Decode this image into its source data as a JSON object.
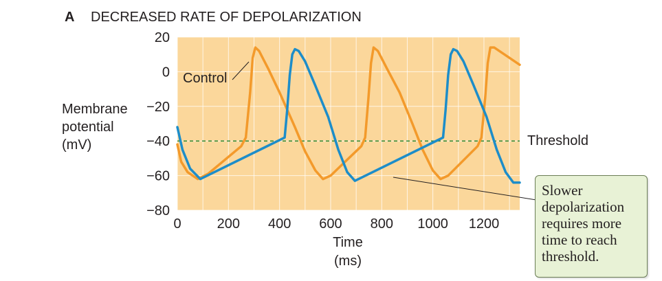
{
  "panel": {
    "letter": "A",
    "title": "DECREASED RATE OF DEPOLARIZATION"
  },
  "colors": {
    "plot_background": "#fbd79b",
    "grid": "#ffffff",
    "control": "#f39a2b",
    "slowed": "#1d8dc9",
    "threshold": "#2e8b3a",
    "callout_background": "#e8f2d6",
    "callout_border": "#6a7d55"
  },
  "annotations": {
    "control_label": "Control",
    "threshold_label": "Threshold",
    "callout_lines": [
      "Slower",
      "depolarization",
      "requires more",
      "time to reach",
      "threshold."
    ]
  },
  "chart_data": {
    "type": "line",
    "ylabel_lines": [
      "Membrane",
      "potential",
      "(mV)"
    ],
    "xlabel_lines": [
      "Time",
      "(ms)"
    ],
    "xlim": [
      0,
      1340
    ],
    "ylim": [
      -80,
      20
    ],
    "x_ticks": [
      0,
      200,
      400,
      600,
      800,
      1000,
      1200
    ],
    "y_ticks": [
      20,
      0,
      -20,
      -40,
      -60,
      -80
    ],
    "x_gridlines": [
      0,
      100,
      200,
      300,
      400,
      500,
      600,
      700,
      800,
      900,
      1000,
      1100,
      1200,
      1300
    ],
    "y_gridlines": [
      20,
      0,
      -20,
      -40,
      -60,
      -80
    ],
    "grid": true,
    "threshold": -40,
    "series": [
      {
        "key": "control",
        "name": "Control",
        "points": [
          [
            0,
            -42
          ],
          [
            15,
            -52
          ],
          [
            40,
            -58
          ],
          [
            80,
            -62
          ],
          [
            120,
            -59
          ],
          [
            250,
            -43
          ],
          [
            268,
            -38
          ],
          [
            285,
            -12
          ],
          [
            295,
            8
          ],
          [
            305,
            14
          ],
          [
            320,
            12
          ],
          [
            355,
            2
          ],
          [
            400,
            -12
          ],
          [
            460,
            -32
          ],
          [
            500,
            -46
          ],
          [
            540,
            -57
          ],
          [
            570,
            -62
          ],
          [
            600,
            -60
          ],
          [
            720,
            -43
          ],
          [
            735,
            -38
          ],
          [
            748,
            -15
          ],
          [
            758,
            5
          ],
          [
            768,
            14
          ],
          [
            785,
            12
          ],
          [
            820,
            2
          ],
          [
            870,
            -12
          ],
          [
            920,
            -30
          ],
          [
            960,
            -45
          ],
          [
            1000,
            -57
          ],
          [
            1030,
            -62
          ],
          [
            1060,
            -60
          ],
          [
            1175,
            -43
          ],
          [
            1190,
            -38
          ],
          [
            1205,
            -15
          ],
          [
            1215,
            5
          ],
          [
            1225,
            14
          ],
          [
            1240,
            14
          ],
          [
            1270,
            11
          ],
          [
            1300,
            8
          ],
          [
            1340,
            4
          ]
        ]
      },
      {
        "key": "slowed",
        "name": "",
        "points": [
          [
            0,
            -32
          ],
          [
            20,
            -45
          ],
          [
            50,
            -56
          ],
          [
            90,
            -62
          ],
          [
            420,
            -38
          ],
          [
            430,
            -22
          ],
          [
            440,
            -2
          ],
          [
            450,
            10
          ],
          [
            460,
            13
          ],
          [
            475,
            12
          ],
          [
            500,
            6
          ],
          [
            540,
            -8
          ],
          [
            590,
            -26
          ],
          [
            630,
            -45
          ],
          [
            665,
            -58
          ],
          [
            695,
            -63
          ],
          [
            1040,
            -38
          ],
          [
            1050,
            -22
          ],
          [
            1060,
            -2
          ],
          [
            1070,
            10
          ],
          [
            1080,
            13
          ],
          [
            1095,
            12
          ],
          [
            1120,
            6
          ],
          [
            1160,
            -8
          ],
          [
            1210,
            -26
          ],
          [
            1250,
            -45
          ],
          [
            1285,
            -58
          ],
          [
            1315,
            -64
          ],
          [
            1340,
            -64
          ]
        ]
      }
    ]
  }
}
